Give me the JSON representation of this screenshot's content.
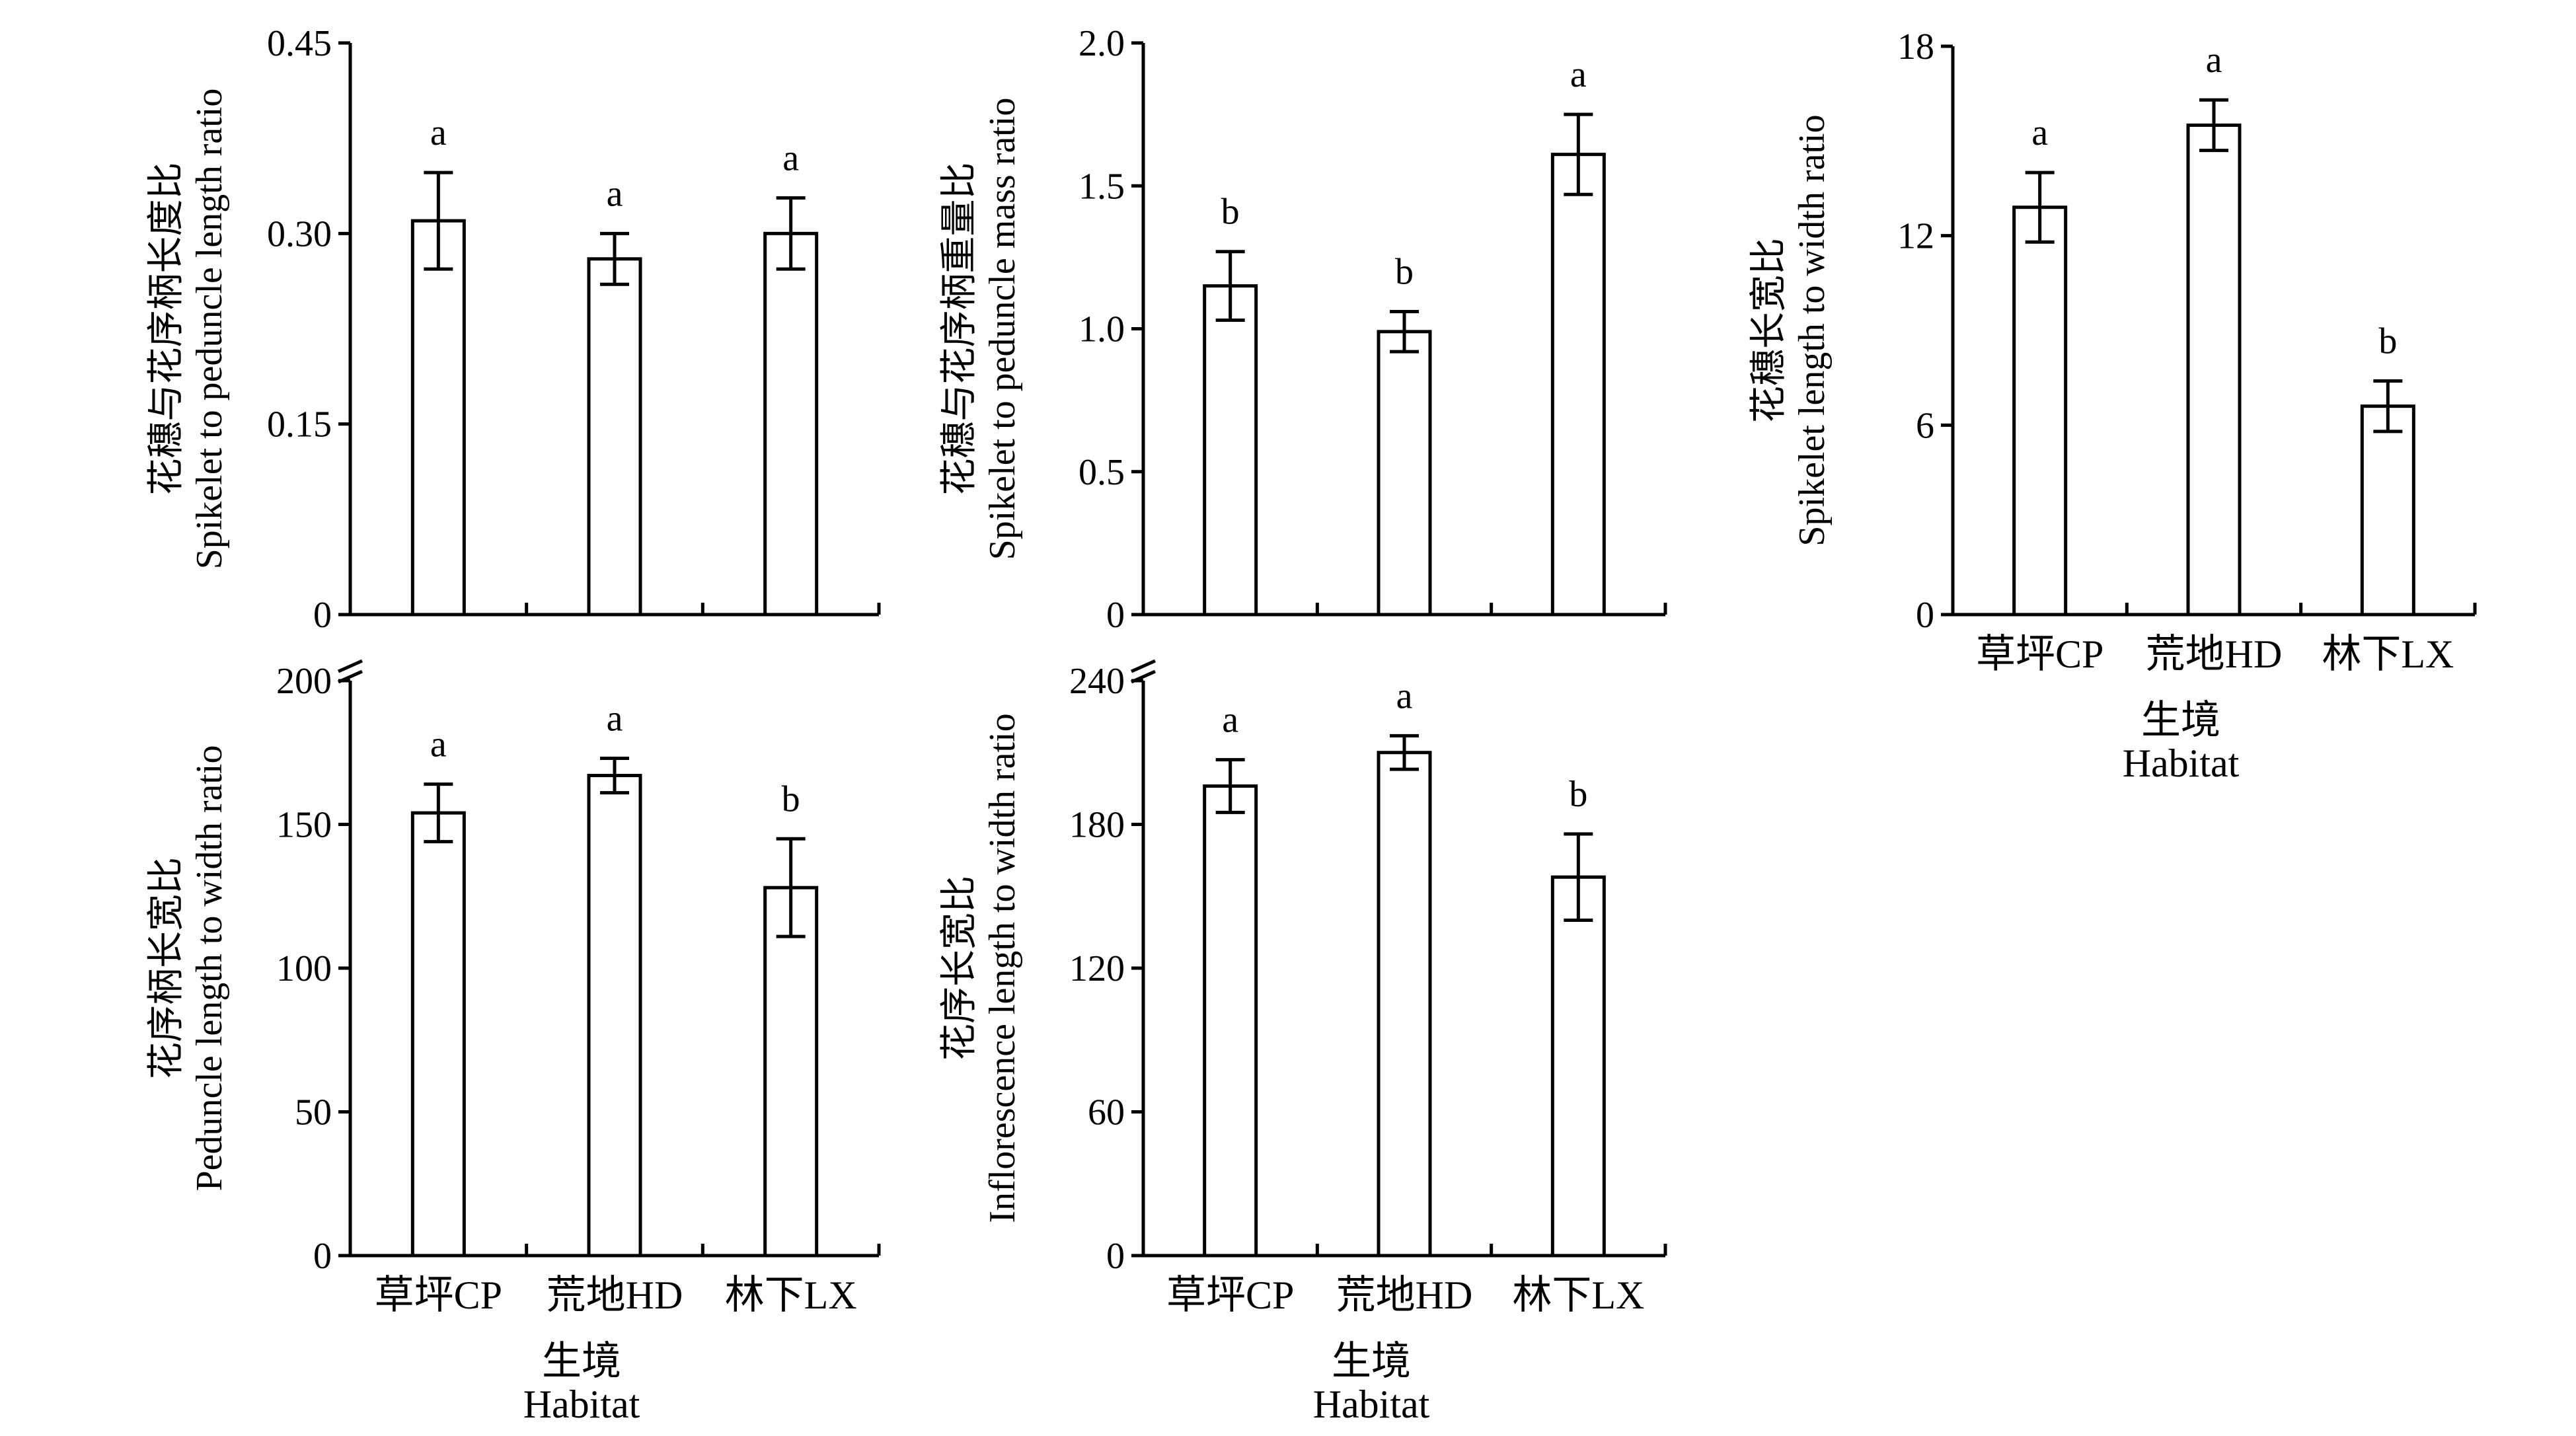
{
  "chart_data": [
    {
      "type": "bar",
      "ylabel_cn": "花穗与花序柄长度比",
      "ylabel_en": "Spikelet to peduncle length ratio",
      "categories": [
        "草坪CP",
        "荒地HD",
        "林下LX"
      ],
      "values": [
        0.31,
        0.28,
        0.3
      ],
      "errors": [
        0.038,
        0.02,
        0.028
      ],
      "significance": [
        "a",
        "a",
        "a"
      ],
      "ylim": [
        0,
        0.45
      ],
      "yticks": [
        "0",
        "0.15",
        "0.30",
        "0.45"
      ],
      "xlabel_cn": "",
      "xlabel_en": ""
    },
    {
      "type": "bar",
      "ylabel_cn": "花穗与花序柄重量比",
      "ylabel_en": "Spikelet to peduncle mass ratio",
      "categories": [
        "草坪CP",
        "荒地HD",
        "林下LX"
      ],
      "values": [
        1.15,
        0.99,
        1.61
      ],
      "errors": [
        0.12,
        0.07,
        0.14
      ],
      "significance": [
        "b",
        "b",
        "a"
      ],
      "ylim": [
        0,
        2.0
      ],
      "yticks": [
        "0",
        "0.5",
        "1.0",
        "1.5",
        "2.0"
      ],
      "xlabel_cn": "",
      "xlabel_en": ""
    },
    {
      "type": "bar",
      "ylabel_cn": "花穗长宽比",
      "ylabel_en": "Spikelet length to width ratio",
      "categories": [
        "草坪CP",
        "荒地HD",
        "林下LX"
      ],
      "values": [
        12.9,
        15.5,
        6.6
      ],
      "errors": [
        1.1,
        0.8,
        0.8
      ],
      "significance": [
        "a",
        "a",
        "b"
      ],
      "ylim": [
        0,
        18
      ],
      "yticks": [
        "0",
        "6",
        "12",
        "18"
      ],
      "xlabel_cn": "生境",
      "xlabel_en": "Habitat"
    },
    {
      "type": "bar",
      "ylabel_cn": "花序柄长宽比",
      "ylabel_en": "Peduncle length to width ratio",
      "categories": [
        "草坪CP",
        "荒地HD",
        "林下LX"
      ],
      "values": [
        154,
        167,
        128
      ],
      "errors": [
        10,
        6,
        17
      ],
      "significance": [
        "a",
        "a",
        "b"
      ],
      "ylim": [
        0,
        200
      ],
      "yticks": [
        "0",
        "50",
        "100",
        "150",
        "200"
      ],
      "xlabel_cn": "生境",
      "xlabel_en": "Habitat"
    },
    {
      "type": "bar",
      "ylabel_cn": "花序长宽比",
      "ylabel_en": "Inflorescence length to width ratio",
      "categories": [
        "草坪CP",
        "荒地HD",
        "林下LX"
      ],
      "values": [
        196,
        210,
        158
      ],
      "errors": [
        11,
        7,
        18
      ],
      "significance": [
        "a",
        "a",
        "b"
      ],
      "ylim": [
        0,
        240
      ],
      "yticks": [
        "0",
        "60",
        "120",
        "180",
        "240"
      ],
      "xlabel_cn": "生境",
      "xlabel_en": "Habitat"
    }
  ]
}
